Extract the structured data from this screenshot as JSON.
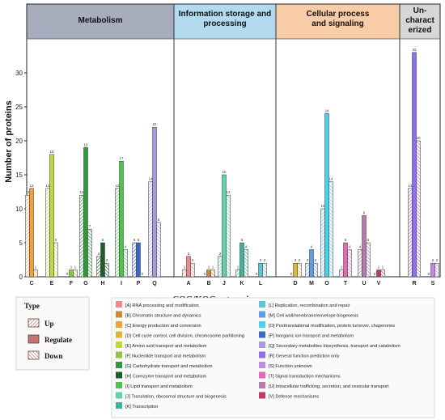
{
  "chart_data": {
    "type": "bar",
    "ylabel": "Number of proteins",
    "xlabel": "COG/KOG categories",
    "ylim": [
      0,
      35
    ],
    "yticks": [
      0,
      5,
      10,
      15,
      20,
      25,
      30
    ],
    "grid": false,
    "groups": [
      {
        "name": "Metabolism",
        "color": "#a7adbd",
        "categories": [
          "C",
          "E",
          "F",
          "G",
          "H",
          "I",
          "P",
          "Q"
        ]
      },
      {
        "name": "Information storage and processing",
        "lines": [
          "Information storage and",
          "processing"
        ],
        "color": "#b4daf0",
        "categories": [
          "A",
          "B",
          "J",
          "K",
          "L"
        ]
      },
      {
        "name": "Cellular process and signaling",
        "lines": [
          "Cellular process",
          "and signaling"
        ],
        "color": "#f8cca6",
        "categories": [
          "D",
          "M",
          "O",
          "T",
          "U",
          "V"
        ]
      },
      {
        "name": "Un-characterized",
        "lines": [
          "Un-",
          "charact",
          "erized"
        ],
        "color": "#d6d6d6",
        "categories": [
          "R",
          "S"
        ]
      }
    ],
    "series": [
      {
        "name": "Up",
        "pattern": "hatch"
      },
      {
        "name": "Regulate",
        "pattern": "solid"
      },
      {
        "name": "Down",
        "pattern": "hatch-reverse"
      }
    ],
    "bars": [
      {
        "category": "C",
        "color": "#f2a13a",
        "values": [
          12,
          13,
          1
        ]
      },
      {
        "category": "E",
        "color": "#c7d640",
        "values": [
          13,
          18,
          5
        ]
      },
      {
        "category": "F",
        "color": "#8dc63f",
        "values": [
          0,
          1,
          1
        ]
      },
      {
        "category": "G",
        "color": "#2f9a3a",
        "values": [
          12,
          19,
          7
        ]
      },
      {
        "category": "H",
        "color": "#1f5f2e",
        "values": [
          3,
          5,
          2
        ]
      },
      {
        "category": "I",
        "color": "#4fc24f",
        "values": [
          13,
          17,
          4
        ]
      },
      {
        "category": "P",
        "color": "#3a68c8",
        "values": [
          5,
          5,
          0
        ]
      },
      {
        "category": "Q",
        "color": "#a99ae0",
        "values": [
          14,
          22,
          8
        ]
      },
      {
        "category": "A",
        "color": "#f08a8a",
        "values": [
          1,
          3,
          2
        ]
      },
      {
        "category": "B",
        "color": "#c78a3c",
        "values": [
          0,
          1,
          1
        ]
      },
      {
        "category": "J",
        "color": "#5fd3ac",
        "values": [
          3,
          15,
          12
        ]
      },
      {
        "category": "K",
        "color": "#40b39d",
        "values": [
          1,
          5,
          4
        ]
      },
      {
        "category": "L",
        "color": "#63c3d8",
        "values": [
          0,
          2,
          2
        ]
      },
      {
        "category": "D",
        "color": "#e0b43c",
        "values": [
          0,
          2,
          2
        ]
      },
      {
        "category": "M",
        "color": "#5f9ee0",
        "values": [
          2,
          4,
          2
        ]
      },
      {
        "category": "O",
        "color": "#4ad0f0",
        "values": [
          10,
          24,
          14
        ]
      },
      {
        "category": "T",
        "color": "#e46bb3",
        "values": [
          1,
          5,
          4
        ]
      },
      {
        "category": "U",
        "color": "#b77aa9",
        "values": [
          4,
          9,
          5
        ]
      },
      {
        "category": "V",
        "color": "#c23b5d",
        "values": [
          0,
          1,
          1
        ]
      },
      {
        "category": "R",
        "color": "#8f6ff0",
        "values": [
          13,
          33,
          20
        ]
      },
      {
        "category": "S",
        "color": "#c18be4",
        "values": [
          0,
          2,
          2
        ]
      }
    ],
    "legend_type_title": "Type",
    "legend_categories": [
      {
        "label": "[A] RNA processing and modification",
        "color": "#f08a8a"
      },
      {
        "label": "[B] Chromatin structure and dynamics",
        "color": "#c78a3c"
      },
      {
        "label": "[C] Energy production and conversion",
        "color": "#f2a13a"
      },
      {
        "label": "[D] Cell cycle control, cell division, chromosome partitioning",
        "color": "#e0b43c"
      },
      {
        "label": "[E] Amino acid transport and metabolism",
        "color": "#c7d640"
      },
      {
        "label": "[F] Nucleotide transport and metabolism",
        "color": "#8dc63f"
      },
      {
        "label": "[G] Carbohydrate transport and metabolism",
        "color": "#2f9a3a"
      },
      {
        "label": "[H] Coenzyme transport and metabolism",
        "color": "#1f5f2e"
      },
      {
        "label": "[I] Lipid transport and metabolism",
        "color": "#4fc24f"
      },
      {
        "label": "[J] Translation, ribosomal structure and biogenesis",
        "color": "#5fd3ac"
      },
      {
        "label": "[K] Transcription",
        "color": "#40b39d"
      },
      {
        "label": "[L] Replication, recombination and repair",
        "color": "#63c3d8"
      },
      {
        "label": "[M] Cell wall/membrane/envelope biogenesis",
        "color": "#5f9ee0"
      },
      {
        "label": "[O] Posttranslational modification, protein turnover, chaperones",
        "color": "#4ad0f0"
      },
      {
        "label": "[P] Inorganic ion transport and metabolism",
        "color": "#3a68c8"
      },
      {
        "label": "[Q] Secondary metabolites biosynthesis, transport and catabolism",
        "color": "#a99ae0"
      },
      {
        "label": "[R] General function prediction only",
        "color": "#8f6ff0"
      },
      {
        "label": "[S] Function unknown",
        "color": "#c18be4"
      },
      {
        "label": "[T] Signal transduction mechanisms",
        "color": "#e46bb3"
      },
      {
        "label": "[U] Intracellular trafficking, secretion, and vesicular transport",
        "color": "#b77aa9"
      },
      {
        "label": "[V] Defense mechanisms",
        "color": "#c23b5d"
      }
    ]
  }
}
